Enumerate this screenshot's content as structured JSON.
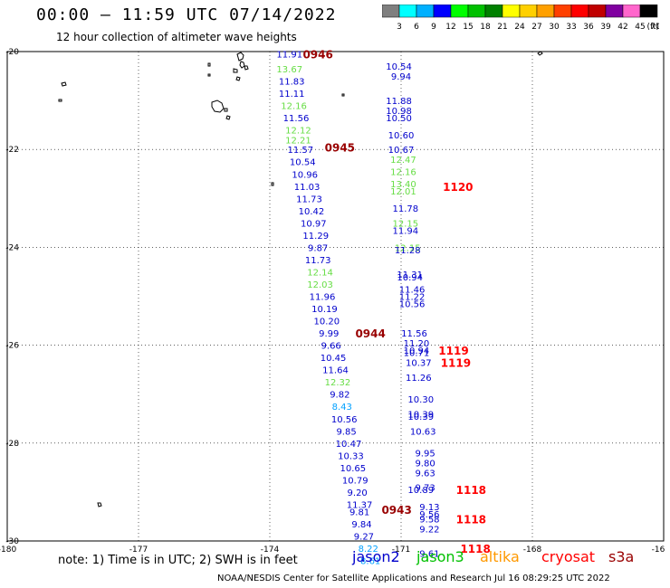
{
  "header": {
    "title": "00:00 – 11:59 UTC 07/14/2022",
    "subtitle": "12 hour collection of altimeter wave heights"
  },
  "legend": {
    "labels": [
      "3",
      "6",
      "9",
      "12",
      "15",
      "18",
      "21",
      "24",
      "27",
      "30",
      "33",
      "36",
      "39",
      "42",
      "45",
      "70"
    ],
    "unit": "(ft)",
    "colors": [
      "#7f7f7f",
      "#00ffff",
      "#00b0ff",
      "#0000ff",
      "#00ff00",
      "#00c000",
      "#008000",
      "#ffff00",
      "#ffd000",
      "#ffa000",
      "#ff4000",
      "#ff0000",
      "#c00000",
      "#8000a0",
      "#ff66cc",
      "#000000"
    ]
  },
  "axes": {
    "x_ticks": [
      "-180",
      "-177",
      "-174",
      "-171",
      "-168",
      "-16"
    ],
    "y_ticks": [
      "-20",
      "-22",
      "-24",
      "-26",
      "-28",
      "-30"
    ]
  },
  "track_colors": {
    "jason2": "#0000cc",
    "jason3": "#00c000",
    "altika": "#ff9900",
    "cryosat": "#ff0000",
    "s3a": "#990000",
    "cyan": "#00a0ff",
    "lightgreen": "#66dd44"
  },
  "tracks": [
    {
      "lon": -173.55,
      "lat": -20.05,
      "text": "11.91",
      "c": "jason2"
    },
    {
      "lon": -173.55,
      "lat": -20.35,
      "text": "13.67",
      "c": "lightgreen"
    },
    {
      "lon": -173.5,
      "lat": -20.6,
      "text": "11.83",
      "c": "jason2"
    },
    {
      "lon": -173.5,
      "lat": -20.85,
      "text": "11.11",
      "c": "jason2"
    },
    {
      "lon": -173.45,
      "lat": -21.1,
      "text": "12.16",
      "c": "lightgreen"
    },
    {
      "lon": -173.4,
      "lat": -21.35,
      "text": "11.56",
      "c": "jason2"
    },
    {
      "lon": -173.35,
      "lat": -21.6,
      "text": "12.12",
      "c": "lightgreen"
    },
    {
      "lon": -173.35,
      "lat": -21.8,
      "text": "12.21",
      "c": "lightgreen"
    },
    {
      "lon": -173.3,
      "lat": -22.0,
      "text": "11.57",
      "c": "jason2"
    },
    {
      "lon": -173.25,
      "lat": -22.25,
      "text": "10.54",
      "c": "jason2"
    },
    {
      "lon": -173.2,
      "lat": -22.5,
      "text": "10.96",
      "c": "jason2"
    },
    {
      "lon": -173.15,
      "lat": -22.75,
      "text": "11.03",
      "c": "jason2"
    },
    {
      "lon": -173.1,
      "lat": -23.0,
      "text": "11.73",
      "c": "jason2"
    },
    {
      "lon": -173.05,
      "lat": -23.25,
      "text": "10.42",
      "c": "jason2"
    },
    {
      "lon": -173.0,
      "lat": -23.5,
      "text": "10.97",
      "c": "jason2"
    },
    {
      "lon": -172.95,
      "lat": -23.75,
      "text": "11.29",
      "c": "jason2"
    },
    {
      "lon": -172.9,
      "lat": -24.0,
      "text": "9.87",
      "c": "jason2"
    },
    {
      "lon": -172.9,
      "lat": -24.25,
      "text": "11.73",
      "c": "jason2"
    },
    {
      "lon": -172.85,
      "lat": -24.5,
      "text": "12.14",
      "c": "lightgreen"
    },
    {
      "lon": -172.85,
      "lat": -24.75,
      "text": "12.03",
      "c": "lightgreen"
    },
    {
      "lon": -172.8,
      "lat": -25.0,
      "text": "11.96",
      "c": "jason2"
    },
    {
      "lon": -172.75,
      "lat": -25.25,
      "text": "10.19",
      "c": "jason2"
    },
    {
      "lon": -172.7,
      "lat": -25.5,
      "text": "10.20",
      "c": "jason2"
    },
    {
      "lon": -172.65,
      "lat": -25.75,
      "text": "9.99",
      "c": "jason2"
    },
    {
      "lon": -172.6,
      "lat": -26.0,
      "text": "9.66",
      "c": "jason2"
    },
    {
      "lon": -172.55,
      "lat": -26.25,
      "text": "10.45",
      "c": "jason2"
    },
    {
      "lon": -172.5,
      "lat": -26.5,
      "text": "11.64",
      "c": "jason2"
    },
    {
      "lon": -172.45,
      "lat": -26.75,
      "text": "12.32",
      "c": "lightgreen"
    },
    {
      "lon": -172.4,
      "lat": -27.0,
      "text": "9.82",
      "c": "jason2"
    },
    {
      "lon": -172.35,
      "lat": -27.25,
      "text": "8.43",
      "c": "cyan"
    },
    {
      "lon": -172.3,
      "lat": -27.5,
      "text": "10.56",
      "c": "jason2"
    },
    {
      "lon": -172.25,
      "lat": -27.75,
      "text": "9.85",
      "c": "jason2"
    },
    {
      "lon": -172.2,
      "lat": -28.0,
      "text": "10.47",
      "c": "jason2"
    },
    {
      "lon": -172.15,
      "lat": -28.25,
      "text": "10.33",
      "c": "jason2"
    },
    {
      "lon": -172.1,
      "lat": -28.5,
      "text": "10.65",
      "c": "jason2"
    },
    {
      "lon": -172.05,
      "lat": -28.75,
      "text": "10.79",
      "c": "jason2"
    },
    {
      "lon": -172.0,
      "lat": -29.0,
      "text": "9.20",
      "c": "jason2"
    },
    {
      "lon": -171.95,
      "lat": -29.25,
      "text": "11.37",
      "c": "jason2"
    },
    {
      "lon": -171.95,
      "lat": -29.4,
      "text": "9.81",
      "c": "jason2"
    },
    {
      "lon": -171.9,
      "lat": -29.65,
      "text": "9.84",
      "c": "jason2"
    },
    {
      "lon": -171.85,
      "lat": -29.9,
      "text": "9.27",
      "c": "jason2"
    },
    {
      "lon": -171.75,
      "lat": -30.15,
      "text": "8.22",
      "c": "cyan"
    },
    {
      "lon": -171.7,
      "lat": -30.4,
      "text": "8.61",
      "c": "cyan"
    },
    {
      "lon": -171.05,
      "lat": -20.3,
      "text": "10.54",
      "c": "jason2"
    },
    {
      "lon": -171.0,
      "lat": -20.5,
      "text": "9.94",
      "c": "jason2"
    },
    {
      "lon": -171.05,
      "lat": -21.0,
      "text": "11.88",
      "c": "jason2"
    },
    {
      "lon": -171.05,
      "lat": -21.2,
      "text": "10.98",
      "c": "jason2"
    },
    {
      "lon": -171.05,
      "lat": -21.35,
      "text": "10.50",
      "c": "jason2"
    },
    {
      "lon": -171.0,
      "lat": -21.7,
      "text": "10.60",
      "c": "jason2"
    },
    {
      "lon": -171.0,
      "lat": -22.0,
      "text": "10.67",
      "c": "jason2"
    },
    {
      "lon": -170.95,
      "lat": -22.2,
      "text": "12.47",
      "c": "lightgreen"
    },
    {
      "lon": -170.95,
      "lat": -22.45,
      "text": "12.16",
      "c": "lightgreen"
    },
    {
      "lon": -170.95,
      "lat": -22.7,
      "text": "13.40",
      "c": "lightgreen"
    },
    {
      "lon": -170.95,
      "lat": -22.85,
      "text": "12.01",
      "c": "lightgreen"
    },
    {
      "lon": -170.9,
      "lat": -23.2,
      "text": "11.78",
      "c": "jason2"
    },
    {
      "lon": -170.9,
      "lat": -23.5,
      "text": "12.15",
      "c": "lightgreen"
    },
    {
      "lon": -170.9,
      "lat": -23.65,
      "text": "11.94",
      "c": "jason2"
    },
    {
      "lon": -170.85,
      "lat": -24.0,
      "text": "12.15",
      "c": "lightgreen"
    },
    {
      "lon": -170.85,
      "lat": -24.05,
      "text": "11.28",
      "c": "jason2"
    },
    {
      "lon": -170.8,
      "lat": -24.55,
      "text": "11.31",
      "c": "jason2"
    },
    {
      "lon": -170.8,
      "lat": -24.6,
      "text": "10.94",
      "c": "jason2"
    },
    {
      "lon": -170.75,
      "lat": -24.85,
      "text": "11.46",
      "c": "jason2"
    },
    {
      "lon": -170.75,
      "lat": -25.0,
      "text": "11.22",
      "c": "jason2"
    },
    {
      "lon": -170.75,
      "lat": -25.15,
      "text": "10.56",
      "c": "jason2"
    },
    {
      "lon": -170.7,
      "lat": -25.75,
      "text": "11.56",
      "c": "jason2"
    },
    {
      "lon": -170.65,
      "lat": -25.95,
      "text": "11.20",
      "c": "jason2"
    },
    {
      "lon": -170.65,
      "lat": -26.1,
      "text": "10.94",
      "c": "jason2"
    },
    {
      "lon": -170.65,
      "lat": -26.15,
      "text": "10.71",
      "c": "jason2"
    },
    {
      "lon": -170.6,
      "lat": -26.35,
      "text": "10.37",
      "c": "jason2"
    },
    {
      "lon": -170.6,
      "lat": -26.65,
      "text": "11.26",
      "c": "jason2"
    },
    {
      "lon": -170.55,
      "lat": -27.1,
      "text": "10.30",
      "c": "jason2"
    },
    {
      "lon": -170.55,
      "lat": -27.4,
      "text": "10.39",
      "c": "jason2"
    },
    {
      "lon": -170.55,
      "lat": -27.45,
      "text": "10.39",
      "c": "jason2"
    },
    {
      "lon": -170.5,
      "lat": -27.75,
      "text": "10.63",
      "c": "jason2"
    },
    {
      "lon": -170.45,
      "lat": -28.2,
      "text": "9.95",
      "c": "jason2"
    },
    {
      "lon": -170.45,
      "lat": -28.4,
      "text": "9.80",
      "c": "jason2"
    },
    {
      "lon": -170.45,
      "lat": -28.6,
      "text": "9.63",
      "c": "jason2"
    },
    {
      "lon": -170.45,
      "lat": -28.9,
      "text": "9.73",
      "c": "jason2"
    },
    {
      "lon": -170.55,
      "lat": -28.95,
      "text": "10.89",
      "c": "jason2"
    },
    {
      "lon": -170.35,
      "lat": -29.3,
      "text": "9.13",
      "c": "jason2"
    },
    {
      "lon": -170.35,
      "lat": -29.45,
      "text": "9.56",
      "c": "jason2"
    },
    {
      "lon": -170.35,
      "lat": -29.55,
      "text": "9.58",
      "c": "jason2"
    },
    {
      "lon": -170.35,
      "lat": -29.75,
      "text": "9.22",
      "c": "jason2"
    },
    {
      "lon": -170.35,
      "lat": -30.25,
      "text": "9.61",
      "c": "jason2"
    }
  ],
  "times": [
    {
      "lon": -172.9,
      "lat": -20.05,
      "text": "0946",
      "c": "s3a"
    },
    {
      "lon": -172.4,
      "lat": -21.95,
      "text": "0945",
      "c": "s3a"
    },
    {
      "lon": -171.7,
      "lat": -25.75,
      "text": "0944",
      "c": "s3a"
    },
    {
      "lon": -171.1,
      "lat": -29.35,
      "text": "0943",
      "c": "s3a"
    },
    {
      "lon": -169.7,
      "lat": -22.75,
      "text": "1120",
      "c": "cryosat"
    },
    {
      "lon": -169.8,
      "lat": -26.1,
      "text": "1119",
      "c": "cryosat"
    },
    {
      "lon": -169.75,
      "lat": -26.35,
      "text": "1119",
      "c": "cryosat"
    },
    {
      "lon": -169.4,
      "lat": -28.95,
      "text": "1118",
      "c": "cryosat"
    },
    {
      "lon": -169.4,
      "lat": -29.55,
      "text": "1118",
      "c": "cryosat"
    },
    {
      "lon": -169.3,
      "lat": -30.15,
      "text": "1118",
      "c": "cryosat"
    }
  ],
  "note": "note: 1) Time is in UTC; 2) SWH is in feet",
  "missions": [
    {
      "text": "jason2",
      "c": "jason2"
    },
    {
      "text": "jason3",
      "c": "jason3"
    },
    {
      "text": "altika",
      "c": "altika"
    },
    {
      "text": "cryosat",
      "c": "cryosat"
    },
    {
      "text": "s3a",
      "c": "s3a"
    }
  ],
  "footer": "NOAA/NESDIS Center for Satellite Applications and Research    Jul 16 08:29:25 UTC 2022"
}
